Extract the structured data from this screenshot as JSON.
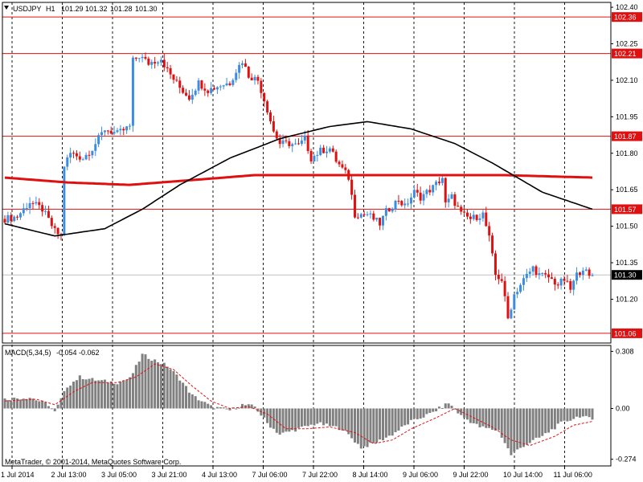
{
  "chart_data": [
    {
      "type": "candlestick",
      "symbol": "USDJPY",
      "timeframe": "H1",
      "ohlc_header": {
        "open": "101.29",
        "high": "101.32",
        "low": "101.28",
        "close": "101.30"
      },
      "ylim": [
        101.02,
        102.42
      ],
      "price_axis_labels": [
        "102.40",
        "102.25",
        "102.10",
        "101.95",
        "101.80",
        "101.65",
        "101.50",
        "101.35",
        "101.20"
      ],
      "levels": [
        {
          "value": 102.36,
          "label": "102.36",
          "color": "#e01010"
        },
        {
          "value": 102.21,
          "label": "102.21",
          "color": "#e01010"
        },
        {
          "value": 101.87,
          "label": "101.87",
          "color": "#e01010"
        },
        {
          "value": 101.57,
          "label": "101.57",
          "color": "#e01010"
        },
        {
          "value": 101.06,
          "label": "101.06",
          "color": "#e01010"
        }
      ],
      "current_price": {
        "value": 101.3,
        "label": "101.30"
      },
      "x_labels": [
        "1 Jul 2014",
        "2 Jul 13:00",
        "3 Jul 05:00",
        "3 Jul 21:00",
        "4 Jul 13:00",
        "7 Jul 06:00",
        "7 Jul 22:00",
        "8 Jul 14:00",
        "9 Jul 06:00",
        "9 Jul 22:00",
        "10 Jul 14:00",
        "11 Jul 06:00"
      ],
      "close_path": [
        [
          0,
          101.53
        ],
        [
          4,
          101.54
        ],
        [
          8,
          101.6
        ],
        [
          12,
          101.57
        ],
        [
          16,
          101.48
        ],
        [
          18,
          101.46
        ],
        [
          19,
          101.75
        ],
        [
          21,
          101.8
        ],
        [
          25,
          101.78
        ],
        [
          28,
          101.82
        ],
        [
          32,
          101.9
        ],
        [
          36,
          101.88
        ],
        [
          40,
          101.91
        ],
        [
          41,
          102.18
        ],
        [
          43,
          102.2
        ],
        [
          46,
          102.17
        ],
        [
          50,
          102.19
        ],
        [
          52,
          102.14
        ],
        [
          56,
          102.07
        ],
        [
          59,
          102.03
        ],
        [
          62,
          102.09
        ],
        [
          65,
          102.06
        ],
        [
          69,
          102.08
        ],
        [
          72,
          102.09
        ],
        [
          74,
          102.14
        ],
        [
          76,
          102.18
        ],
        [
          78,
          102.12
        ],
        [
          81,
          102.1
        ],
        [
          84,
          101.98
        ],
        [
          86,
          101.89
        ],
        [
          88,
          101.84
        ],
        [
          91,
          101.84
        ],
        [
          94,
          101.83
        ],
        [
          96,
          101.86
        ],
        [
          98,
          101.78
        ],
        [
          101,
          101.81
        ],
        [
          104,
          101.82
        ],
        [
          106,
          101.77
        ],
        [
          110,
          101.7
        ],
        [
          112,
          101.55
        ],
        [
          116,
          101.55
        ],
        [
          120,
          101.51
        ],
        [
          122,
          101.56
        ],
        [
          126,
          101.61
        ],
        [
          128,
          101.58
        ],
        [
          131,
          101.64
        ],
        [
          133,
          101.62
        ],
        [
          137,
          101.66
        ],
        [
          140,
          101.7
        ],
        [
          141,
          101.59
        ],
        [
          143,
          101.62
        ],
        [
          146,
          101.55
        ],
        [
          149,
          101.53
        ],
        [
          153,
          101.55
        ],
        [
          155,
          101.45
        ],
        [
          157,
          101.3
        ],
        [
          159,
          101.28
        ],
        [
          161,
          101.12
        ],
        [
          163,
          101.22
        ],
        [
          166,
          101.28
        ],
        [
          169,
          101.33
        ],
        [
          171,
          101.3
        ],
        [
          174,
          101.29
        ],
        [
          177,
          101.26
        ],
        [
          179,
          101.28
        ],
        [
          181,
          101.24
        ],
        [
          183,
          101.3
        ],
        [
          185,
          101.33
        ],
        [
          187,
          101.29
        ],
        [
          188,
          101.3
        ]
      ],
      "ma_200": [
        [
          0,
          101.7
        ],
        [
          20,
          101.68
        ],
        [
          40,
          101.67
        ],
        [
          60,
          101.69
        ],
        [
          80,
          101.71
        ],
        [
          100,
          101.71
        ],
        [
          120,
          101.71
        ],
        [
          140,
          101.71
        ],
        [
          160,
          101.71
        ],
        [
          188,
          101.7
        ]
      ],
      "ma_100": [
        [
          0,
          101.51
        ],
        [
          16,
          101.46
        ],
        [
          32,
          101.49
        ],
        [
          44,
          101.57
        ],
        [
          56,
          101.67
        ],
        [
          72,
          101.78
        ],
        [
          88,
          101.86
        ],
        [
          104,
          101.91
        ],
        [
          116,
          101.93
        ],
        [
          130,
          101.9
        ],
        [
          144,
          101.84
        ],
        [
          156,
          101.76
        ],
        [
          172,
          101.64
        ],
        [
          188,
          101.57
        ]
      ]
    },
    {
      "type": "histogram",
      "indicator": "MACD(5,34,5)",
      "values_label": "-0.054 -0.062",
      "ylim": [
        -0.31,
        0.34
      ],
      "axis_labels": [
        "0.308",
        "0.00",
        "-0.274"
      ],
      "hist_path": [
        [
          0,
          0.05
        ],
        [
          8,
          0.06
        ],
        [
          14,
          0.02
        ],
        [
          16,
          -0.02
        ],
        [
          20,
          0.12
        ],
        [
          24,
          0.17
        ],
        [
          30,
          0.15
        ],
        [
          36,
          0.14
        ],
        [
          40,
          0.16
        ],
        [
          44,
          0.29
        ],
        [
          48,
          0.26
        ],
        [
          52,
          0.23
        ],
        [
          56,
          0.16
        ],
        [
          60,
          0.07
        ],
        [
          66,
          0.01
        ],
        [
          72,
          -0.01
        ],
        [
          76,
          0.02
        ],
        [
          80,
          0.01
        ],
        [
          84,
          -0.08
        ],
        [
          88,
          -0.14
        ],
        [
          94,
          -0.11
        ],
        [
          100,
          -0.08
        ],
        [
          108,
          -0.11
        ],
        [
          114,
          -0.21
        ],
        [
          118,
          -0.19
        ],
        [
          124,
          -0.14
        ],
        [
          130,
          -0.07
        ],
        [
          136,
          -0.03
        ],
        [
          142,
          0.03
        ],
        [
          146,
          -0.04
        ],
        [
          152,
          -0.1
        ],
        [
          158,
          -0.12
        ],
        [
          162,
          -0.25
        ],
        [
          166,
          -0.2
        ],
        [
          172,
          -0.15
        ],
        [
          178,
          -0.08
        ],
        [
          184,
          -0.04
        ],
        [
          188,
          -0.06
        ]
      ],
      "signal_path": [
        [
          0,
          0.04
        ],
        [
          10,
          0.05
        ],
        [
          16,
          0.02
        ],
        [
          22,
          0.09
        ],
        [
          28,
          0.14
        ],
        [
          36,
          0.14
        ],
        [
          42,
          0.17
        ],
        [
          48,
          0.24
        ],
        [
          54,
          0.21
        ],
        [
          60,
          0.12
        ],
        [
          66,
          0.04
        ],
        [
          72,
          0.0
        ],
        [
          78,
          0.01
        ],
        [
          84,
          -0.03
        ],
        [
          90,
          -0.11
        ],
        [
          96,
          -0.11
        ],
        [
          104,
          -0.1
        ],
        [
          112,
          -0.13
        ],
        [
          118,
          -0.19
        ],
        [
          124,
          -0.17
        ],
        [
          130,
          -0.11
        ],
        [
          138,
          -0.05
        ],
        [
          144,
          0.0
        ],
        [
          150,
          -0.05
        ],
        [
          156,
          -0.1
        ],
        [
          162,
          -0.17
        ],
        [
          168,
          -0.2
        ],
        [
          176,
          -0.15
        ],
        [
          182,
          -0.09
        ],
        [
          188,
          -0.07
        ]
      ]
    }
  ],
  "footer_text": "MetaTrader, © 2001-2014, MetaQuotes Software Corp.",
  "colors": {
    "bull": "#3c8de0",
    "bear": "#e01010",
    "level": "#e01010",
    "ma200": "#e01010",
    "ma100": "#000000",
    "hist": "#808080",
    "signal": "#e01010",
    "grid": "#000000"
  }
}
